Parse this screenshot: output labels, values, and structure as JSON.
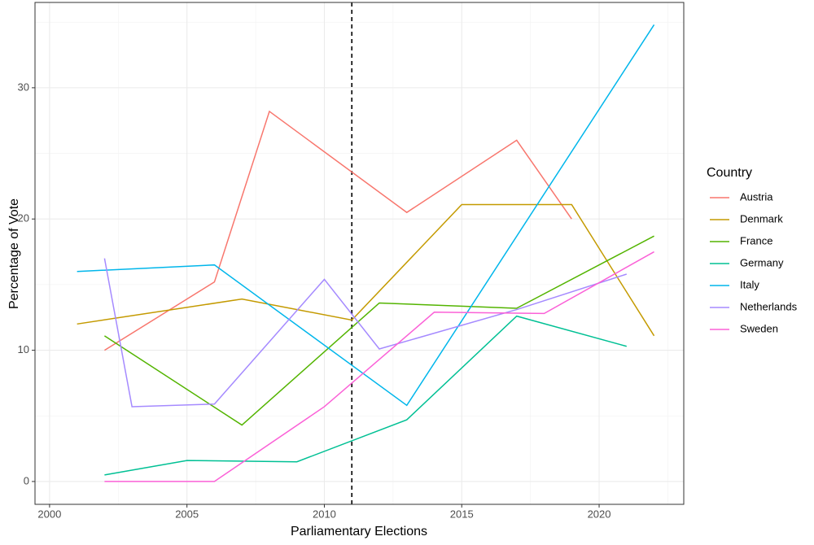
{
  "chart_data": {
    "type": "line",
    "x_label": "Parliamentary Elections",
    "y_label": "Percentage of Vote",
    "legend_title": "Country",
    "legend_position": "right",
    "xlim": [
      1999.47,
      2023.08
    ],
    "ylim": [
      -1.74,
      36.5
    ],
    "xticks": [
      2000,
      2005,
      2010,
      2015,
      2020
    ],
    "yticks": [
      0,
      10,
      20,
      30
    ],
    "grid": true,
    "vline": 2011,
    "series": [
      {
        "name": "Austria",
        "color": "#F8766D",
        "x": [
          2002,
          2006,
          2008,
          2013,
          2017,
          2019
        ],
        "values": [
          10.0,
          15.2,
          28.2,
          20.5,
          26.0,
          20.0
        ]
      },
      {
        "name": "Denmark",
        "color": "#C49A00",
        "x": [
          2001,
          2007,
          2011,
          2015,
          2019,
          2022
        ],
        "values": [
          12.0,
          13.9,
          12.3,
          21.1,
          21.1,
          11.1
        ]
      },
      {
        "name": "France",
        "color": "#53B400",
        "x": [
          2002,
          2007,
          2012,
          2017,
          2022
        ],
        "values": [
          11.1,
          4.3,
          13.6,
          13.2,
          18.7
        ]
      },
      {
        "name": "Germany",
        "color": "#00C094",
        "x": [
          2002,
          2005,
          2009,
          2013,
          2017,
          2021
        ],
        "values": [
          0.5,
          1.6,
          1.5,
          4.7,
          12.6,
          10.3
        ]
      },
      {
        "name": "Italy",
        "color": "#00B6EB",
        "x": [
          2001,
          2006,
          2013,
          2022
        ],
        "values": [
          16.0,
          16.5,
          5.8,
          34.8
        ]
      },
      {
        "name": "Netherlands",
        "color": "#A58AFF",
        "x": [
          2002,
          2003,
          2006,
          2010,
          2012,
          2017,
          2021
        ],
        "values": [
          17.0,
          5.7,
          5.9,
          15.4,
          10.1,
          13.1,
          15.8
        ]
      },
      {
        "name": "Sweden",
        "color": "#FB61D7",
        "x": [
          2002,
          2006,
          2010,
          2014,
          2018,
          2022
        ],
        "values": [
          0.0,
          0.0,
          5.7,
          12.9,
          12.8,
          17.5
        ]
      }
    ]
  }
}
